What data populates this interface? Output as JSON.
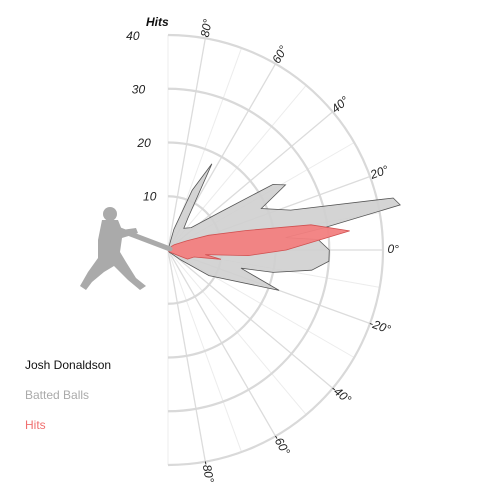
{
  "chart_data": {
    "type": "polar-area",
    "player": "Josh Donaldson",
    "radial_axis_title": "Hits",
    "radial_ticks": [
      10,
      20,
      30,
      40
    ],
    "angle_ticks": [
      80,
      60,
      40,
      20,
      0,
      -20,
      -40,
      -60,
      -80
    ],
    "angle_tick_labels": [
      "80°",
      "60°",
      "40°",
      "20°",
      "0°",
      "-20°",
      "-40°",
      "-60°",
      "-80°"
    ],
    "angle_range": [
      -90,
      90
    ],
    "r_max": 40,
    "series": [
      {
        "name": "Batted Balls",
        "color": "#cfcfcf",
        "points": [
          [
            -90,
            0
          ],
          [
            -60,
            0.5
          ],
          [
            -45,
            1
          ],
          [
            -38,
            3
          ],
          [
            -32,
            9
          ],
          [
            -20,
            22
          ],
          [
            -14,
            14
          ],
          [
            -12,
            20
          ],
          [
            -8,
            27
          ],
          [
            -4,
            30
          ],
          [
            0,
            30
          ],
          [
            4,
            28
          ],
          [
            6,
            22
          ],
          [
            8,
            29
          ],
          [
            11,
            44
          ],
          [
            13,
            43
          ],
          [
            18,
            24
          ],
          [
            24,
            19
          ],
          [
            29,
            25
          ],
          [
            32,
            23
          ],
          [
            36,
            12
          ],
          [
            44,
            6
          ],
          [
            54,
            5
          ],
          [
            58,
            7
          ],
          [
            63,
            18
          ],
          [
            68,
            12
          ],
          [
            74,
            4
          ],
          [
            90,
            0
          ]
        ]
      },
      {
        "name": "Hits",
        "color": "#f28080",
        "points": [
          [
            -90,
            0
          ],
          [
            -60,
            0.3
          ],
          [
            -40,
            0.8
          ],
          [
            -25,
            4
          ],
          [
            -15,
            5
          ],
          [
            -10,
            10
          ],
          [
            -7,
            7
          ],
          [
            -4,
            15
          ],
          [
            0,
            22
          ],
          [
            6,
            34
          ],
          [
            10,
            27
          ],
          [
            14,
            15
          ],
          [
            20,
            8
          ],
          [
            26,
            4
          ],
          [
            40,
            1.5
          ],
          [
            60,
            0.5
          ],
          [
            90,
            0
          ]
        ]
      }
    ],
    "legend": [
      "Josh Donaldson",
      "Batted Balls",
      "Hits"
    ],
    "legend_colors": [
      "#111111",
      "#aaaaaa",
      "#f06e6e"
    ],
    "grid": true
  },
  "icons": {
    "batter": "batter-silhouette-icon"
  }
}
